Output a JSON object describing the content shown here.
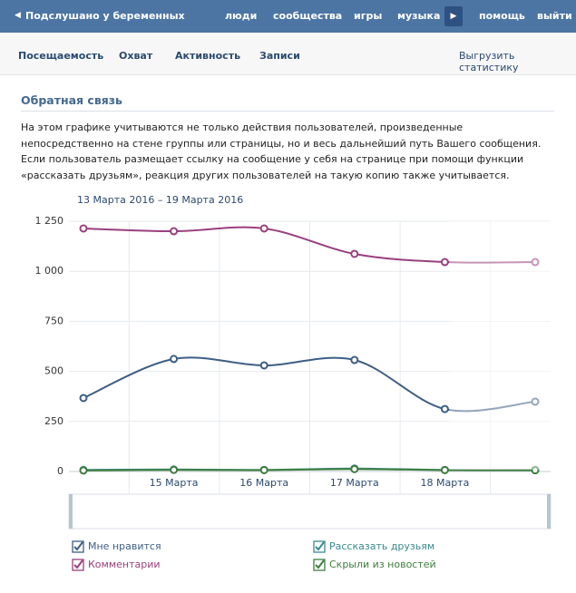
{
  "nav": {
    "group": "Подслушано у беременных",
    "links": [
      "люди",
      "сообщества",
      "игры",
      "музыка"
    ],
    "right_links": [
      "помощь",
      "выйти"
    ]
  },
  "tabs": {
    "items": [
      "Посещаемость",
      "Охват",
      "Активность",
      "Записи"
    ],
    "active": 2,
    "export": "Выгрузить статистику"
  },
  "section": {
    "title": "Обратная связь",
    "text": "На этом графике учитываются не только действия пользователей, произведенные непосредственно на стене группы или страницы, но и весь дальнейший путь Вашего сообщения. Если пользователь размещает ссылку на сообщение у себя на странице при помощи функции «рассказать друзьям», реакция других пользователей на такую копию также учитывается."
  },
  "chart_data": {
    "type": "line",
    "subtitle": "13 Марта 2016 – 19 Марта 2016",
    "categories": [
      null,
      "15 Марта",
      "16 Марта",
      "17 Марта",
      "18 Марта",
      null
    ],
    "series": [
      {
        "name": "Мне нравится",
        "color": "#3e5e84",
        "values": [
          367,
          562,
          530,
          557,
          312,
          349
        ]
      },
      {
        "name": "Комментарии",
        "color": "#9a3f7e",
        "values": [
          1214,
          1200,
          1214,
          1087,
          1046,
          1046
        ]
      },
      {
        "name": "Рассказать друзьям",
        "color": "#3a8a8f",
        "values": [
          8,
          10,
          8,
          15,
          8,
          8
        ]
      },
      {
        "name": "Скрыли из новостей",
        "color": "#3f7f3f",
        "values": [
          5,
          8,
          7,
          12,
          7,
          6
        ]
      }
    ],
    "ylim": [
      0,
      1250
    ],
    "yticks": [
      0,
      250,
      500,
      750,
      {
        "value": 1000,
        "label": "1 000"
      },
      {
        "value": 1250,
        "label": "1 250"
      }
    ],
    "grid": true
  }
}
